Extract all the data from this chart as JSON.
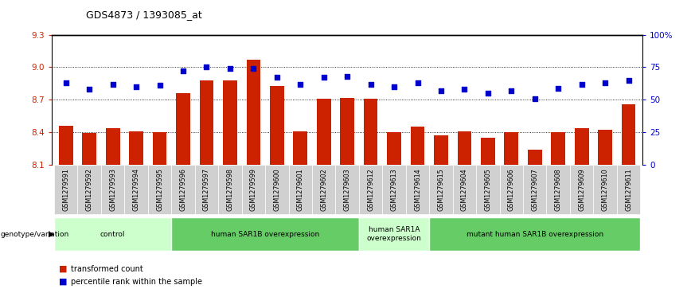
{
  "title": "GDS4873 / 1393085_at",
  "samples": [
    "GSM1279591",
    "GSM1279592",
    "GSM1279593",
    "GSM1279594",
    "GSM1279595",
    "GSM1279596",
    "GSM1279597",
    "GSM1279598",
    "GSM1279599",
    "GSM1279600",
    "GSM1279601",
    "GSM1279602",
    "GSM1279603",
    "GSM1279612",
    "GSM1279613",
    "GSM1279614",
    "GSM1279615",
    "GSM1279604",
    "GSM1279605",
    "GSM1279606",
    "GSM1279607",
    "GSM1279608",
    "GSM1279609",
    "GSM1279610",
    "GSM1279611"
  ],
  "bar_values": [
    8.46,
    8.39,
    8.44,
    8.41,
    8.4,
    8.76,
    8.88,
    8.88,
    9.07,
    8.83,
    8.41,
    8.71,
    8.72,
    8.71,
    8.4,
    8.45,
    8.37,
    8.41,
    8.35,
    8.4,
    8.24,
    8.4,
    8.44,
    8.42,
    8.66
  ],
  "percentile_values": [
    63,
    58,
    62,
    60,
    61,
    72,
    75,
    74,
    74,
    67,
    62,
    67,
    68,
    62,
    60,
    63,
    57,
    58,
    55,
    57,
    51,
    59,
    62,
    63,
    65
  ],
  "groups": [
    {
      "label": "control",
      "start": 0,
      "end": 4,
      "color": "#ccffcc"
    },
    {
      "label": "human SAR1B overexpression",
      "start": 5,
      "end": 12,
      "color": "#66cc66"
    },
    {
      "label": "human SAR1A\noverexpression",
      "start": 13,
      "end": 15,
      "color": "#ccffcc"
    },
    {
      "label": "mutant human SAR1B overexpression",
      "start": 16,
      "end": 24,
      "color": "#66cc66"
    }
  ],
  "ylim_left": [
    8.1,
    9.3
  ],
  "ylim_right": [
    0,
    100
  ],
  "bar_color": "#cc2200",
  "dot_color": "#0000cc",
  "tick_box_color": "#cccccc",
  "xlabel_color": "#cc2200",
  "genotype_label": "genotype/variation"
}
